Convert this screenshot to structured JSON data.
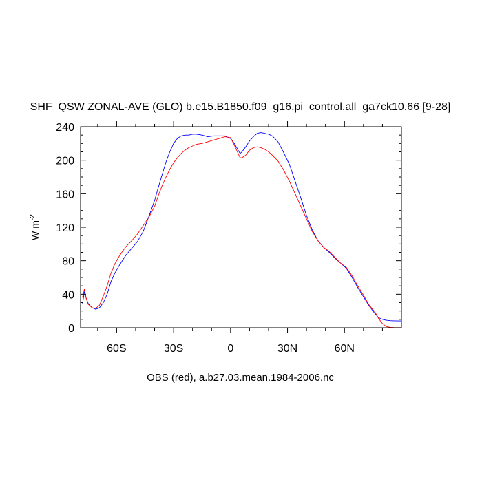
{
  "chart_data": {
    "type": "line",
    "title": "SHF_QSW ZONAL-AVE (GLO) b.e15.B1850.f09_g16.pi_control.all_ga7ck10.66 [9-28]",
    "ylabel": "W m",
    "ylabel_superscript": "-2",
    "xlabel": "OBS (red), a.b27.03.mean.1984-2006.nc",
    "xlim": [
      -79,
      90
    ],
    "ylim": [
      0,
      240
    ],
    "xticks": [
      {
        "value": -60,
        "label": "60S"
      },
      {
        "value": -30,
        "label": "30S"
      },
      {
        "value": 0,
        "label": "0"
      },
      {
        "value": 30,
        "label": "30N"
      },
      {
        "value": 60,
        "label": "60N"
      }
    ],
    "yticks": [
      0,
      40,
      80,
      120,
      160,
      200,
      240
    ],
    "grid": false,
    "series": [
      {
        "color": "#0000ff",
        "x": [
          -78,
          -77,
          -76,
          -75,
          -73,
          -71,
          -69,
          -67,
          -65,
          -63,
          -61,
          -59,
          -57,
          -55,
          -52,
          -49,
          -46,
          -43,
          -40,
          -38,
          -36,
          -34,
          -32,
          -30,
          -28,
          -26,
          -24,
          -22,
          -20,
          -18,
          -15,
          -12,
          -9,
          -6,
          -3,
          0,
          2,
          4,
          5,
          6,
          8,
          10,
          12,
          14,
          16,
          18,
          20,
          22,
          25,
          28,
          31,
          34,
          37,
          40,
          43,
          46,
          49,
          52,
          55,
          58,
          61,
          64,
          67,
          70,
          73,
          76,
          78,
          80,
          82,
          84,
          86,
          88,
          90
        ],
        "y": [
          28,
          43,
          35,
          29,
          24,
          22,
          24,
          30,
          40,
          55,
          65,
          73,
          80,
          87,
          95,
          103,
          115,
          133,
          152,
          168,
          183,
          198,
          210,
          220,
          226,
          229,
          230,
          230,
          231,
          231,
          230,
          228,
          229,
          229,
          229,
          226,
          220,
          212,
          208,
          210,
          216,
          223,
          228,
          232,
          233,
          232,
          231,
          229,
          222,
          209,
          195,
          175,
          155,
          134,
          117,
          104,
          96,
          90,
          83,
          77,
          71,
          60,
          48,
          37,
          26,
          17,
          12,
          10,
          9,
          8.5,
          8.3,
          8.2,
          8.2
        ]
      },
      {
        "color": "#ff0000",
        "x": [
          -78,
          -77,
          -76,
          -75,
          -73,
          -71,
          -69,
          -67,
          -65,
          -63,
          -61,
          -59,
          -57,
          -55,
          -52,
          -49,
          -46,
          -43,
          -40,
          -38,
          -36,
          -34,
          -32,
          -30,
          -28,
          -26,
          -24,
          -22,
          -20,
          -18,
          -15,
          -12,
          -9,
          -6,
          -3,
          0,
          2,
          4,
          5,
          6,
          8,
          10,
          12,
          14,
          16,
          18,
          20,
          22,
          25,
          28,
          31,
          34,
          37,
          40,
          43,
          46,
          49,
          52,
          55,
          58,
          61,
          64,
          67,
          70,
          73,
          76,
          78,
          80,
          82,
          84,
          86,
          88,
          90
        ],
        "y": [
          36,
          46,
          35,
          28,
          24,
          23,
          27,
          38,
          50,
          65,
          76,
          84,
          91,
          97,
          104,
          112,
          122,
          132,
          145,
          158,
          170,
          180,
          189,
          197,
          203,
          208,
          212,
          215,
          217,
          219,
          220,
          222,
          224,
          226,
          228,
          227,
          218,
          208,
          203,
          203,
          206,
          212,
          215,
          216,
          215,
          213,
          210,
          206,
          199,
          188,
          175,
          160,
          145,
          130,
          115,
          104,
          96,
          91,
          84,
          77,
          72,
          62,
          50,
          39,
          27,
          19,
          11,
          5,
          1.5,
          0.5,
          0.2,
          0.1,
          0.1
        ]
      }
    ]
  }
}
